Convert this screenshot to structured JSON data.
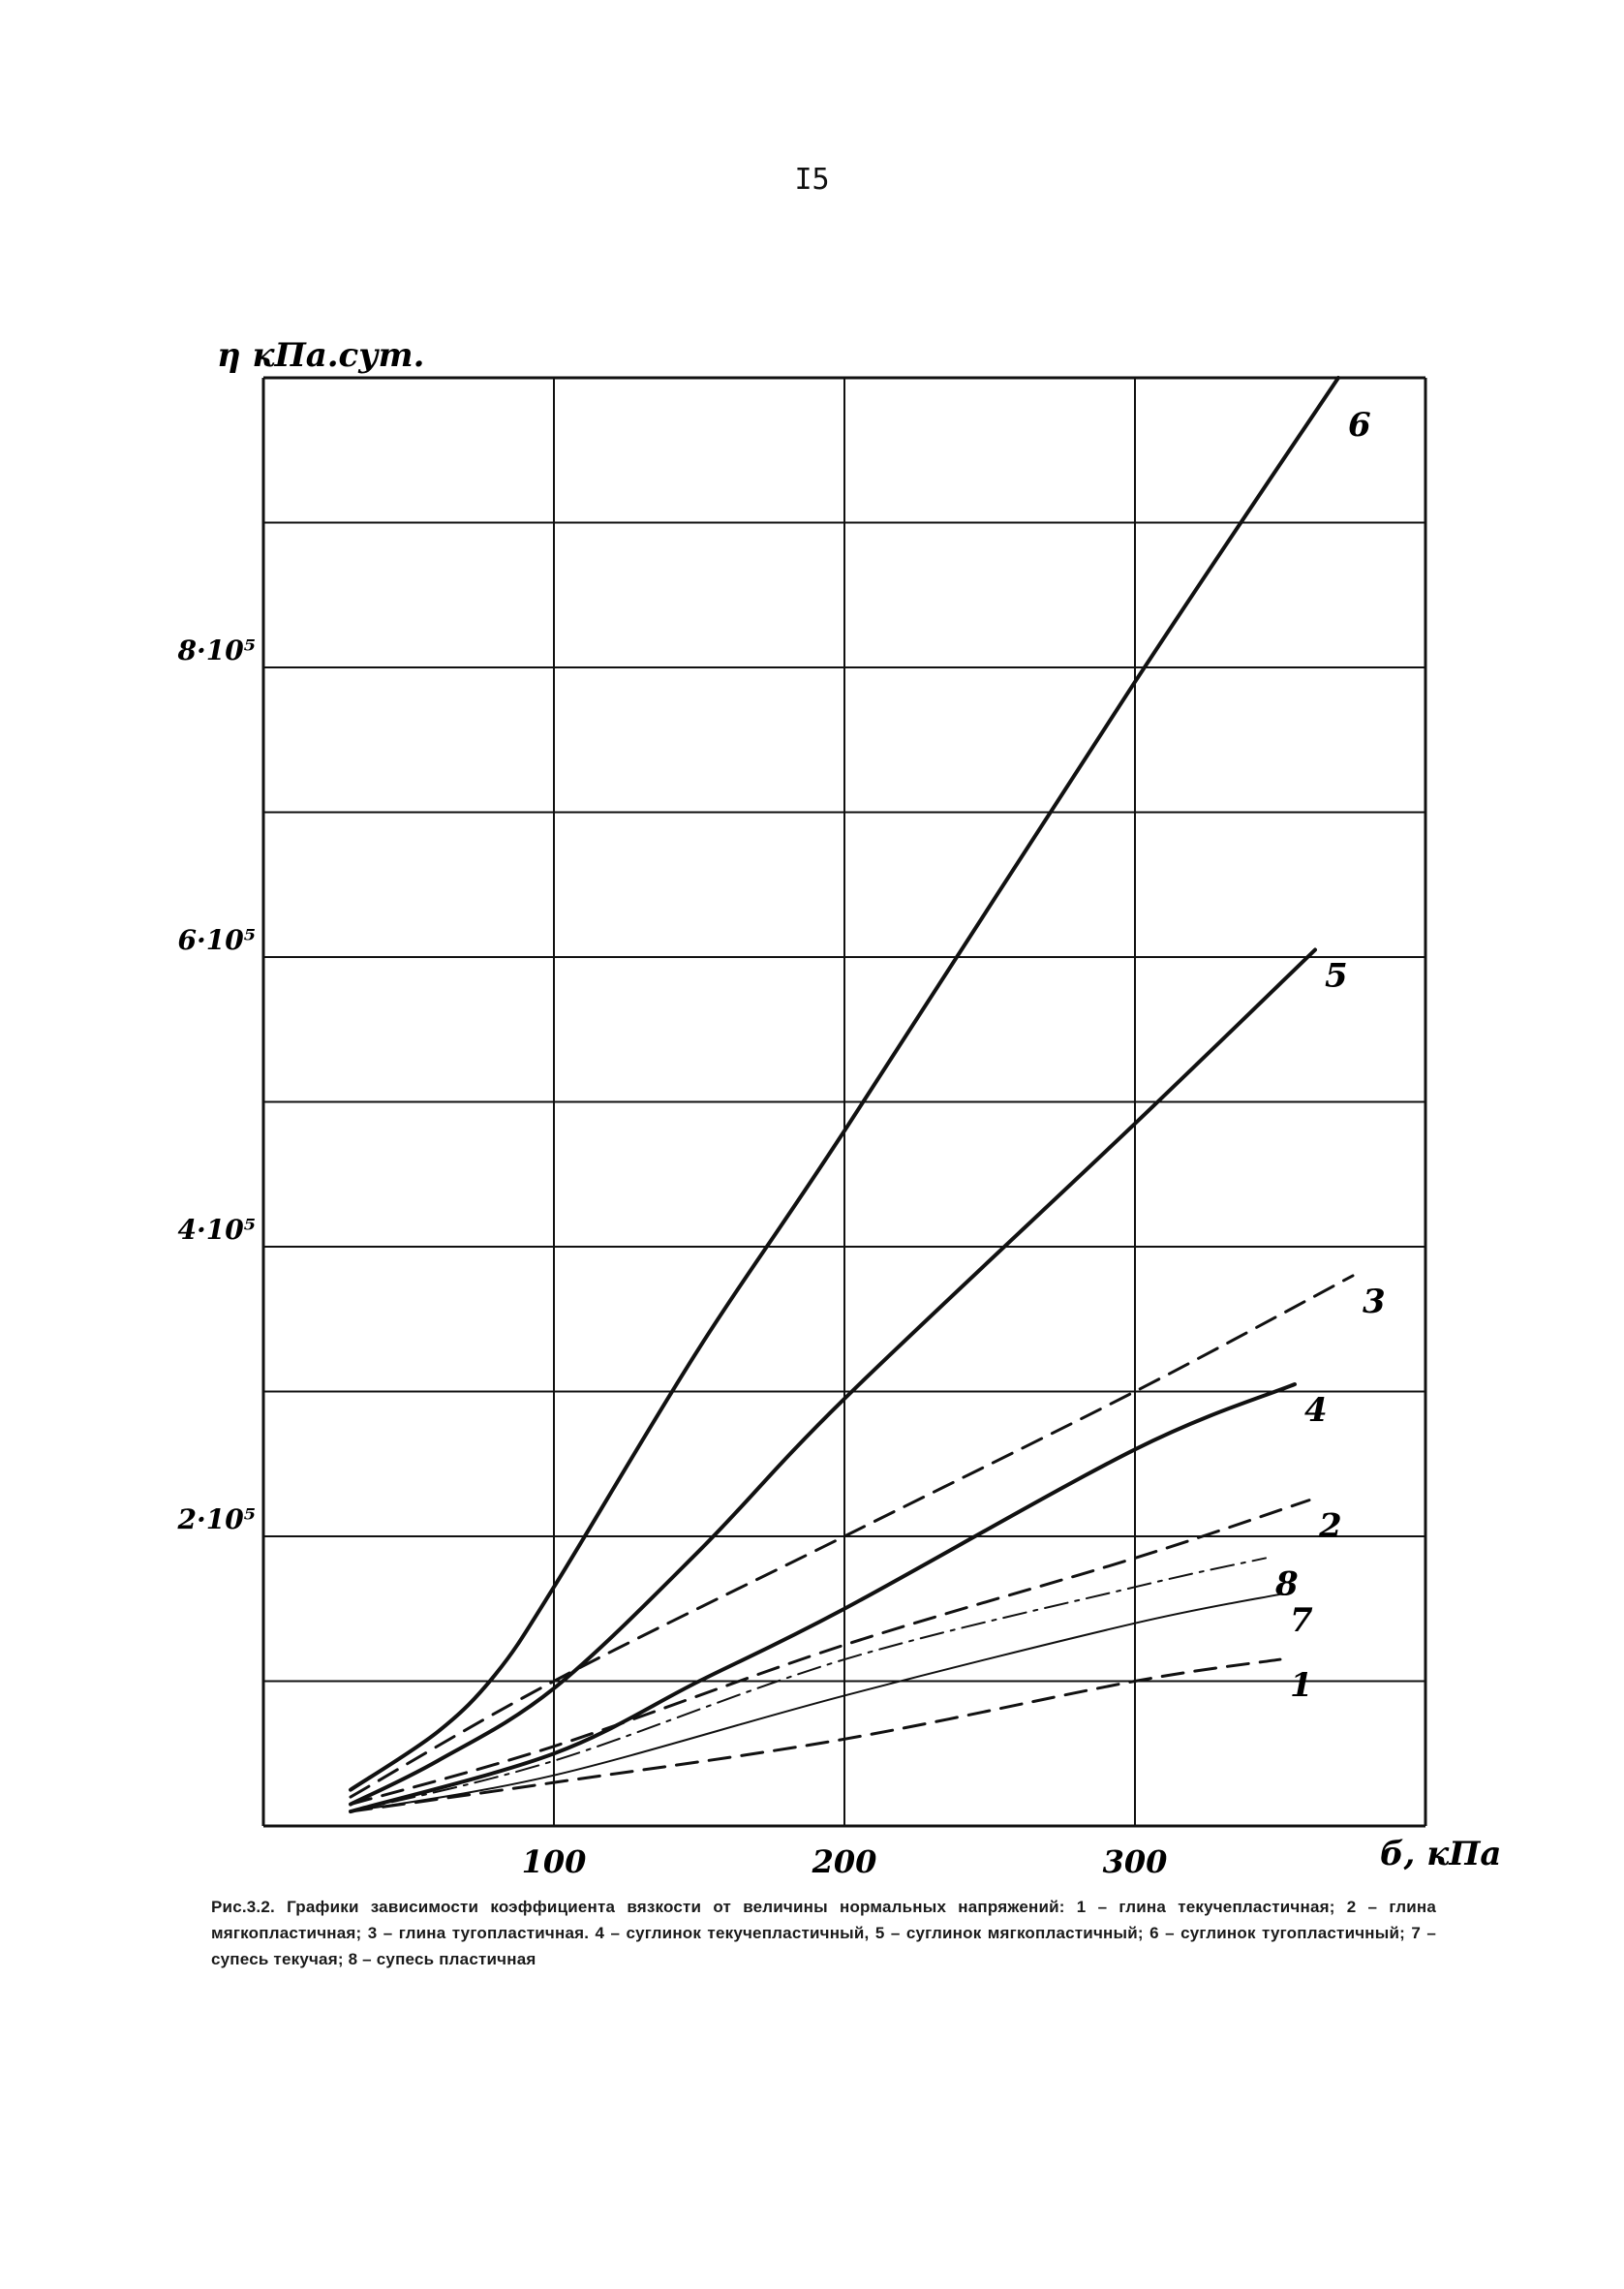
{
  "page": {
    "number": "I5"
  },
  "chart_data": {
    "type": "line",
    "ylabel": "η кПа.сут.",
    "xlabel": "б, кПа",
    "xlim": [
      0,
      400
    ],
    "ylim": [
      0,
      10
    ],
    "x_ticks": [
      {
        "value": 100,
        "label": "100"
      },
      {
        "value": 200,
        "label": "200"
      },
      {
        "value": 300,
        "label": "300"
      }
    ],
    "y_ticks": [
      {
        "value": 2,
        "label": "2·10⁵"
      },
      {
        "value": 4,
        "label": "4·10⁵"
      },
      {
        "value": 6,
        "label": "6·10⁵"
      },
      {
        "value": 8,
        "label": "8·10⁵"
      }
    ],
    "grid": true,
    "series": [
      {
        "name": "1",
        "style": "dashed",
        "width": 3,
        "points": [
          [
            30,
            0.1
          ],
          [
            100,
            0.3
          ],
          [
            200,
            0.6
          ],
          [
            300,
            1.0
          ],
          [
            350,
            1.15
          ]
        ]
      },
      {
        "name": "2",
        "style": "dashed",
        "width": 3,
        "points": [
          [
            30,
            0.15
          ],
          [
            100,
            0.55
          ],
          [
            200,
            1.25
          ],
          [
            300,
            1.85
          ],
          [
            360,
            2.25
          ]
        ]
      },
      {
        "name": "3",
        "style": "dashed",
        "width": 3,
        "points": [
          [
            30,
            0.2
          ],
          [
            100,
            1.0
          ],
          [
            200,
            2.0
          ],
          [
            300,
            3.0
          ],
          [
            375,
            3.8
          ]
        ]
      },
      {
        "name": "4",
        "style": "solid",
        "width": 4,
        "points": [
          [
            30,
            0.1
          ],
          [
            100,
            0.5
          ],
          [
            150,
            1.0
          ],
          [
            200,
            1.5
          ],
          [
            300,
            2.6
          ],
          [
            355,
            3.05
          ]
        ]
      },
      {
        "name": "5",
        "style": "solid",
        "width": 4,
        "points": [
          [
            30,
            0.15
          ],
          [
            60,
            0.45
          ],
          [
            100,
            0.95
          ],
          [
            150,
            1.9
          ],
          [
            200,
            2.95
          ],
          [
            300,
            4.85
          ],
          [
            362,
            6.05
          ]
        ]
      },
      {
        "name": "6",
        "style": "solid",
        "width": 4,
        "points": [
          [
            30,
            0.25
          ],
          [
            60,
            0.65
          ],
          [
            80,
            1.05
          ],
          [
            100,
            1.65
          ],
          [
            150,
            3.3
          ],
          [
            200,
            4.8
          ],
          [
            300,
            7.9
          ],
          [
            370,
            10.0
          ]
        ]
      },
      {
        "name": "7",
        "style": "thin",
        "width": 2,
        "points": [
          [
            30,
            0.1
          ],
          [
            100,
            0.35
          ],
          [
            200,
            0.9
          ],
          [
            300,
            1.4
          ],
          [
            350,
            1.6
          ]
        ]
      },
      {
        "name": "8",
        "style": "dashdot",
        "width": 2,
        "points": [
          [
            30,
            0.1
          ],
          [
            100,
            0.45
          ],
          [
            200,
            1.15
          ],
          [
            300,
            1.65
          ],
          [
            345,
            1.85
          ]
        ]
      }
    ],
    "series_label_positions": "at line ends, right side"
  },
  "caption": {
    "text": "Рис.3.2. Графики зависимости коэффициента вязкости от величины нормальных напряжений: 1 – глина текучепластичная; 2 – глина мягкопластичная; 3 – глина тугопластичная. 4 – суглинок текучепластичный, 5 – суглинок мягкопластичный; 6 – суглинок тугопластичный; 7 – супесь текучая; 8 – супесь пластичная"
  }
}
